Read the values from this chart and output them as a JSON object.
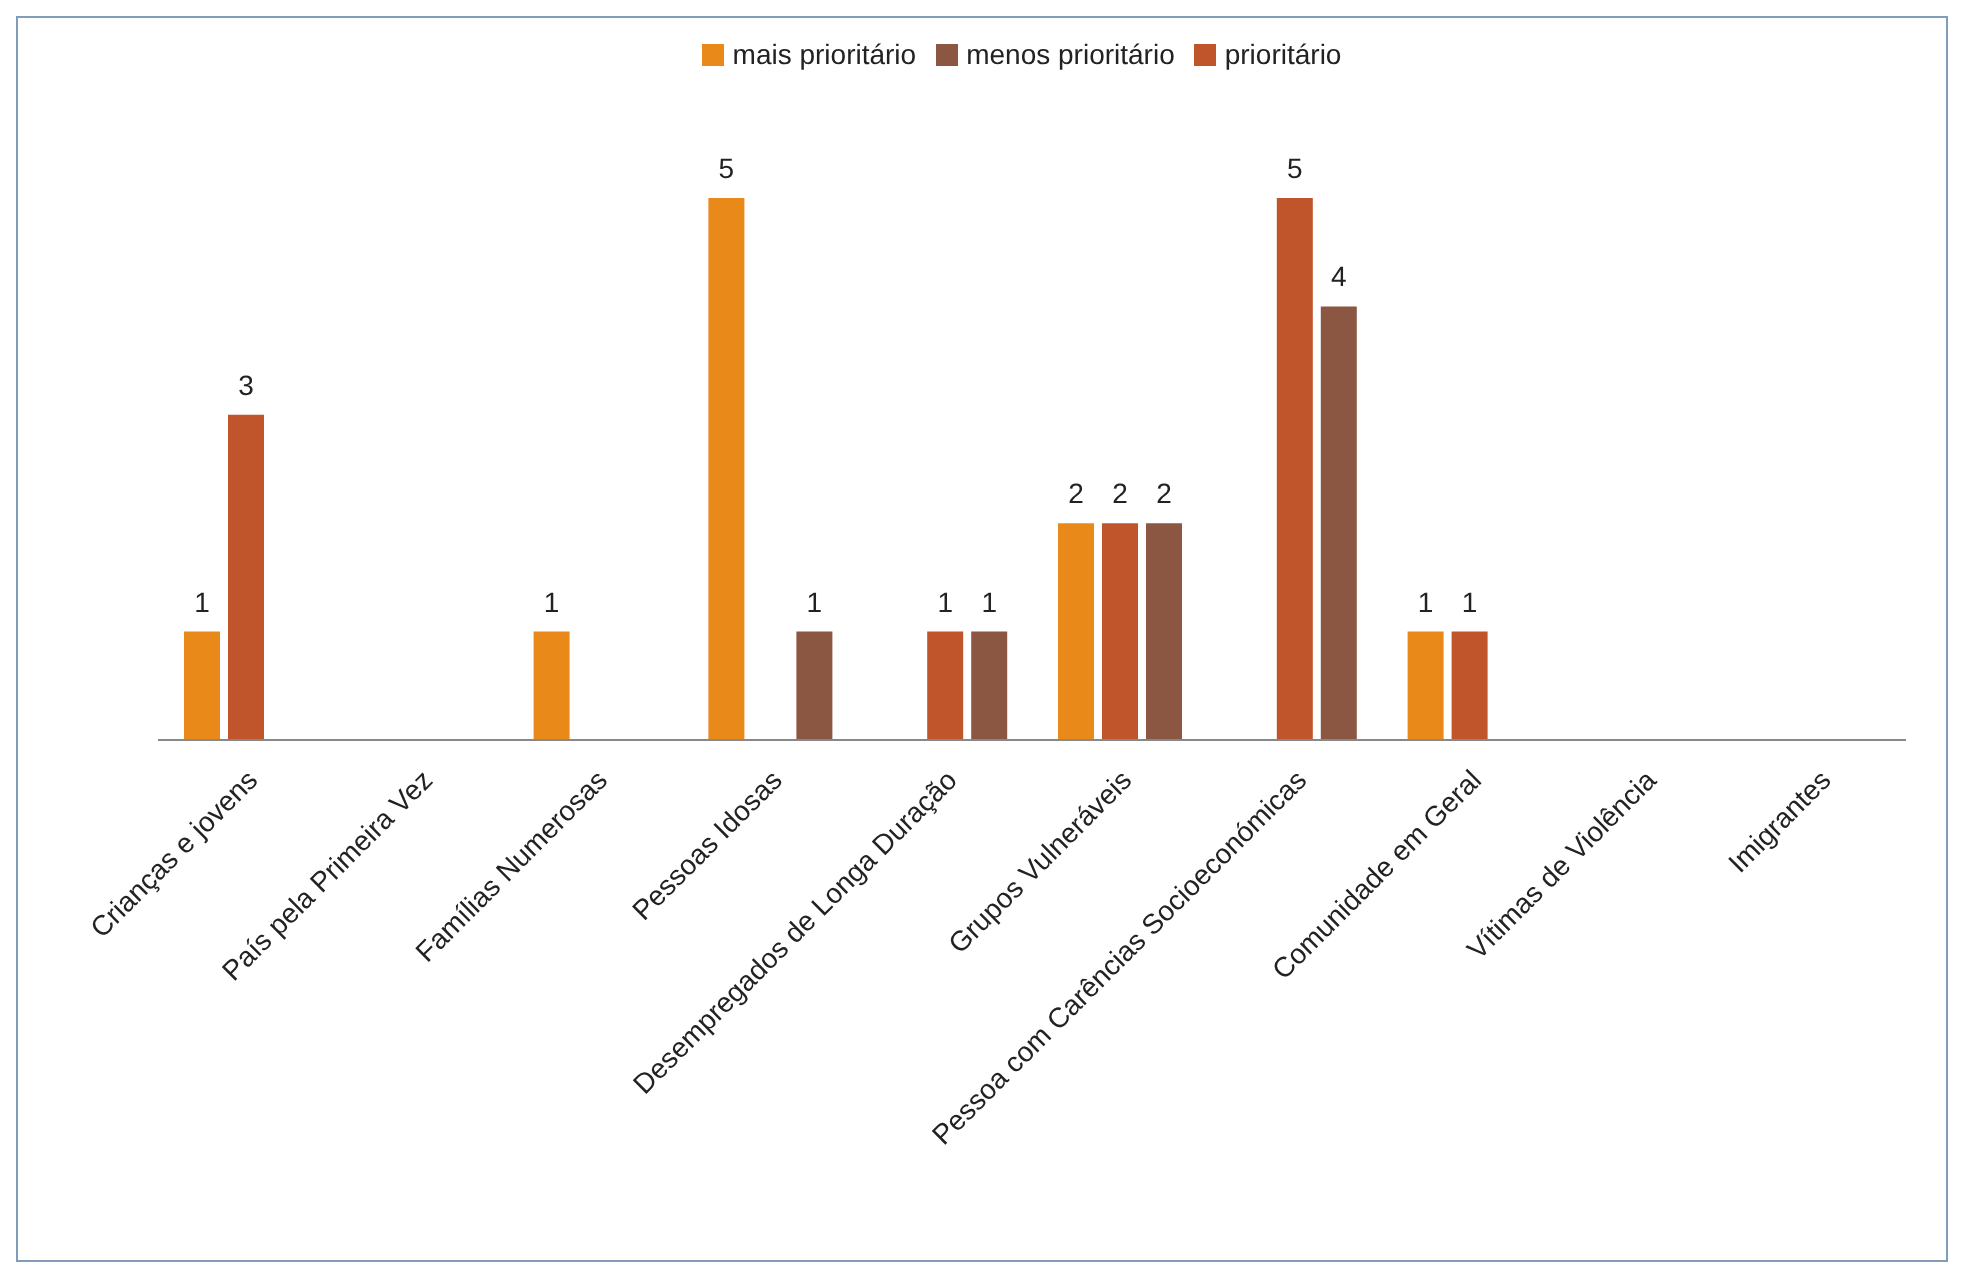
{
  "chart_data": {
    "type": "bar",
    "categories": [
      "Crianças e jovens",
      "País pela Primeira Vez",
      "Famílias Numerosas",
      "Pessoas Idosas",
      "Desempregados de Longa Duração",
      "Grupos Vulneráveis",
      "Pessoa com Carências Socioeconómicas",
      "Comunidade em Geral",
      "Vítimas de Violência",
      "Imigrantes"
    ],
    "series": [
      {
        "name": "mais prioritário",
        "color": "#e8891a",
        "values": [
          1,
          null,
          1,
          5,
          null,
          2,
          null,
          1,
          null,
          null
        ]
      },
      {
        "name": "prioritário",
        "color": "#c0542a",
        "values": [
          3,
          null,
          null,
          null,
          1,
          2,
          5,
          1,
          null,
          null
        ]
      },
      {
        "name": "menos prioritário",
        "color": "#8b5742",
        "values": [
          null,
          null,
          null,
          1,
          1,
          2,
          4,
          null,
          null,
          null
        ]
      }
    ],
    "data_labels": true,
    "legend": "top",
    "grid": false
  }
}
